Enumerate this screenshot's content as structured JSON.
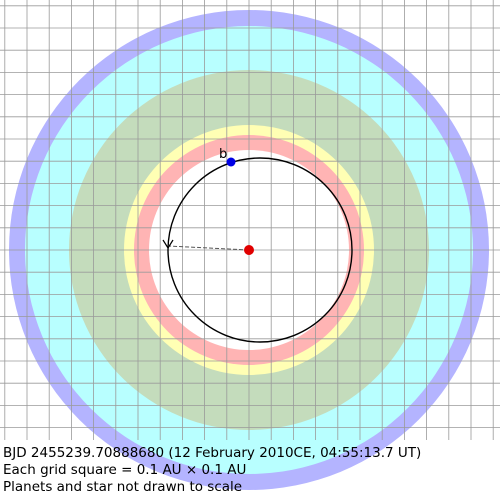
{
  "colors": {
    "background": "#ffffff",
    "grid": "#9a9a9a",
    "outer_ring": "#b4b4ff",
    "cyan_zone": "#b8ffff",
    "green_zone": "#c4dcbc",
    "yellow_zone": "#ffffb4",
    "red_zone": "#ffb4b4",
    "inner_zone": "#ffffff",
    "orbit": "#000000",
    "star": "#e00000",
    "planet": "#0000e6",
    "periastron_line": "#555555"
  },
  "icons": {
    "star": "red-dot",
    "planet": "blue-dot",
    "direction_arrow": "arrowhead-icon"
  },
  "planet": {
    "label": "b"
  },
  "captions": {
    "line1": "BJD 2455239.70888680 (12 February 2010CE, 04:55:13.7 UT)",
    "line2": "Each grid square = 0.1 AU × 0.1 AU",
    "line3": "Planets and star not drawn to scale"
  }
}
